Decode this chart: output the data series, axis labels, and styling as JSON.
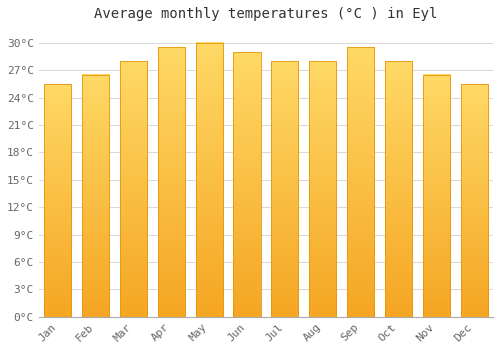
{
  "title": "Average monthly temperatures (°C ) in Eyl",
  "months": [
    "Jan",
    "Feb",
    "Mar",
    "Apr",
    "May",
    "Jun",
    "Jul",
    "Aug",
    "Sep",
    "Oct",
    "Nov",
    "Dec"
  ],
  "values": [
    25.5,
    26.5,
    28.0,
    29.5,
    30.0,
    29.0,
    28.0,
    28.0,
    29.5,
    28.0,
    26.5,
    25.5
  ],
  "bar_color_bottom": "#F5A623",
  "bar_color_top": "#FFD966",
  "bar_edge_color": "#E8950A",
  "background_color": "#ffffff",
  "grid_color": "#d8d8d8",
  "ytick_labels": [
    "0°C",
    "3°C",
    "6°C",
    "9°C",
    "12°C",
    "15°C",
    "18°C",
    "21°C",
    "24°C",
    "27°C",
    "30°C"
  ],
  "ytick_values": [
    0,
    3,
    6,
    9,
    12,
    15,
    18,
    21,
    24,
    27,
    30
  ],
  "ylim": [
    0,
    31.5
  ],
  "title_fontsize": 10,
  "tick_fontsize": 8,
  "font_family": "monospace"
}
